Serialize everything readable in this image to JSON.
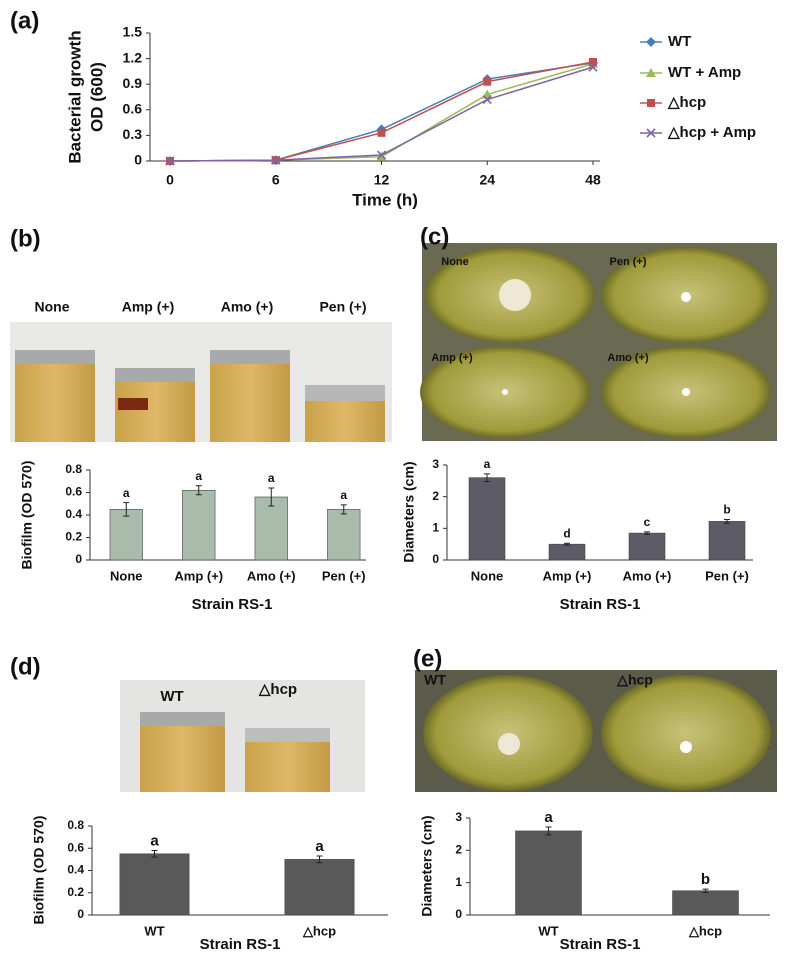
{
  "chart_data": [
    {
      "type": "line",
      "panel_label": "(a)",
      "y_label": [
        "Bacterial growth",
        "OD (600)"
      ],
      "x_label": "Time (h)",
      "categories": [
        "0",
        "6",
        "12",
        "24",
        "48"
      ],
      "ylim": [
        0,
        1.5
      ],
      "yticks": [
        0,
        0.3,
        0.6,
        0.9,
        1.2,
        1.5
      ],
      "series": [
        {
          "name": "WT",
          "color": "#4a7ebb",
          "marker": "diamond",
          "values": [
            0,
            0.01,
            0.37,
            0.96,
            1.15
          ]
        },
        {
          "name": "WT + Amp",
          "color": "#9bbb59",
          "marker": "triangle",
          "values": [
            0,
            0.01,
            0.05,
            0.78,
            1.14
          ]
        },
        {
          "name": "△hcp",
          "color": "#c0504d",
          "marker": "square",
          "values": [
            0,
            0.01,
            0.33,
            0.93,
            1.16
          ]
        },
        {
          "name": "△hcp + Amp",
          "color": "#8064a2",
          "marker": "x",
          "values": [
            0,
            0.01,
            0.07,
            0.72,
            1.1
          ]
        }
      ]
    },
    {
      "type": "bar",
      "panel_label": "(b)",
      "photo_labels": [
        "None",
        "Amp (+)",
        "Amo (+)",
        "Pen (+)"
      ],
      "y_label": "Biofilm (OD 570)",
      "x_label": "Strain RS-1",
      "color": "#a9bcab",
      "categories": [
        "None",
        "Amp (+)",
        "Amo (+)",
        "Pen (+)"
      ],
      "values": [
        0.45,
        0.62,
        0.56,
        0.45
      ],
      "errors": [
        0.06,
        0.04,
        0.08,
        0.04
      ],
      "letters": [
        "a",
        "a",
        "a",
        "a"
      ],
      "ylim": [
        0,
        0.8
      ],
      "yticks": [
        0,
        0.2,
        0.4,
        0.6,
        0.8
      ]
    },
    {
      "type": "bar",
      "panel_label": "(c)",
      "photo_labels": [
        "None",
        "Pen (+)",
        "Amp (+)",
        "Amo (+)"
      ],
      "y_label": "Diameters (cm)",
      "x_label": "Strain RS-1",
      "color": "#5c5b66",
      "categories": [
        "None",
        "Amp (+)",
        "Amo (+)",
        "Pen (+)"
      ],
      "values": [
        2.6,
        0.5,
        0.85,
        1.22
      ],
      "errors": [
        0.12,
        0.03,
        0.04,
        0.06
      ],
      "letters": [
        "a",
        "d",
        "c",
        "b"
      ],
      "ylim": [
        0,
        3
      ],
      "yticks": [
        0,
        1,
        2,
        3
      ]
    },
    {
      "type": "bar",
      "panel_label": "(d)",
      "photo_labels": [
        "WT",
        "△hcp"
      ],
      "y_label": "Biofilm (OD 570)",
      "x_label": "Strain RS-1",
      "color": "#595959",
      "categories": [
        "WT",
        "△hcp"
      ],
      "values": [
        0.55,
        0.5
      ],
      "errors": [
        0.03,
        0.03
      ],
      "letters": [
        "a",
        "a"
      ],
      "ylim": [
        0,
        0.8
      ],
      "yticks": [
        0,
        0.2,
        0.4,
        0.6,
        0.8
      ]
    },
    {
      "type": "bar",
      "panel_label": "(e)",
      "photo_labels": [
        "WT",
        "△hcp"
      ],
      "y_label": "Diameters (cm)",
      "x_label": "Strain RS-1",
      "color": "#595959",
      "categories": [
        "WT",
        "△hcp"
      ],
      "values": [
        2.6,
        0.75
      ],
      "errors": [
        0.12,
        0.05
      ],
      "letters": [
        "a",
        "b"
      ],
      "ylim": [
        0,
        3
      ],
      "yticks": [
        0,
        1,
        2,
        3
      ]
    }
  ]
}
